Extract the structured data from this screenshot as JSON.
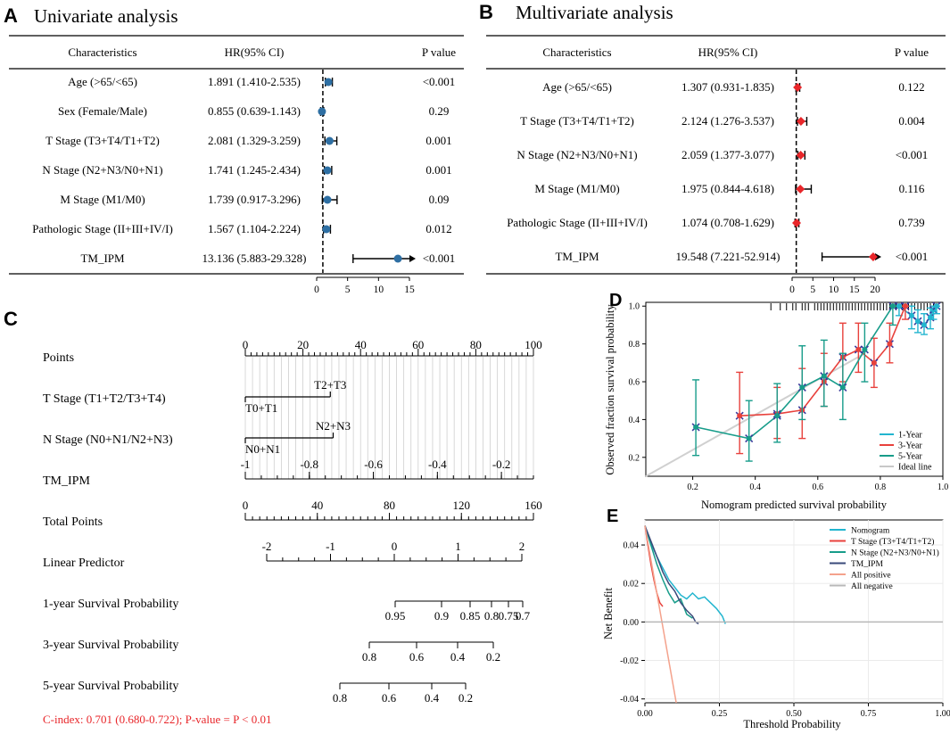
{
  "panel_labels": [
    "A",
    "B",
    "C",
    "D",
    "E"
  ],
  "chart_data": [
    {
      "panel": "A",
      "type": "forest",
      "title": "Univariate analysis",
      "headers": {
        "characteristic": "Characteristics",
        "hr": "HR(95% CI)",
        "p": "P value"
      },
      "rows": [
        {
          "label": "Age (>65/<65)",
          "hr_text": "1.891 (1.410-2.535)",
          "p": "<0.001",
          "hr": 1.891,
          "lo": 1.41,
          "hi": 2.535
        },
        {
          "label": "Sex (Female/Male)",
          "hr_text": "0.855 (0.639-1.143)",
          "p": "0.29",
          "hr": 0.855,
          "lo": 0.639,
          "hi": 1.143
        },
        {
          "label": "T Stage (T3+T4/T1+T2)",
          "hr_text": "2.081 (1.329-3.259)",
          "p": "0.001",
          "hr": 2.081,
          "lo": 1.329,
          "hi": 3.259
        },
        {
          "label": "N Stage (N2+N3/N0+N1)",
          "hr_text": "1.741 (1.245-2.434)",
          "p": "0.001",
          "hr": 1.741,
          "lo": 1.245,
          "hi": 2.434
        },
        {
          "label": "M Stage (M1/M0)",
          "hr_text": "1.739 (0.917-3.296)",
          "p": "0.09",
          "hr": 1.739,
          "lo": 0.917,
          "hi": 3.296
        },
        {
          "label": "Pathologic Stage (II+III+IV/I)",
          "hr_text": "1.567 (1.104-2.224)",
          "p": "0.012",
          "hr": 1.567,
          "lo": 1.104,
          "hi": 2.224
        },
        {
          "label": "TM_IPM",
          "hr_text": "13.136 (5.883-29.328)",
          "p": "<0.001",
          "hr": 13.136,
          "lo": 5.883,
          "hi": 29.328
        }
      ],
      "xticks": [
        0,
        5,
        10,
        15
      ],
      "xlim": [
        0,
        15
      ],
      "reference_line": 1,
      "marker_color": "#2e6fa3"
    },
    {
      "panel": "B",
      "type": "forest",
      "title": "Multivariate analysis",
      "headers": {
        "characteristic": "Characteristics",
        "hr": "HR(95% CI)",
        "p": "P value"
      },
      "rows": [
        {
          "label": "Age (>65/<65)",
          "hr_text": "1.307 (0.931-1.835)",
          "p": "0.122",
          "hr": 1.307,
          "lo": 0.931,
          "hi": 1.835
        },
        {
          "label": "T Stage (T3+T4/T1+T2)",
          "hr_text": "2.124 (1.276-3.537)",
          "p": "0.004",
          "hr": 2.124,
          "lo": 1.276,
          "hi": 3.537
        },
        {
          "label": "N Stage (N2+N3/N0+N1)",
          "hr_text": "2.059 (1.377-3.077)",
          "p": "<0.001",
          "hr": 2.059,
          "lo": 1.377,
          "hi": 3.077
        },
        {
          "label": "M Stage (M1/M0)",
          "hr_text": "1.975 (0.844-4.618)",
          "p": "0.116",
          "hr": 1.975,
          "lo": 0.844,
          "hi": 4.618
        },
        {
          "label": "Pathologic Stage (II+III+IV/I)",
          "hr_text": "1.074 (0.708-1.629)",
          "p": "0.739",
          "hr": 1.074,
          "lo": 0.708,
          "hi": 1.629
        },
        {
          "label": "TM_IPM",
          "hr_text": "19.548 (7.221-52.914)",
          "p": "<0.001",
          "hr": 19.548,
          "lo": 7.221,
          "hi": 52.914
        }
      ],
      "xticks": [
        0,
        5,
        10,
        15,
        20
      ],
      "xlim": [
        0,
        20
      ],
      "reference_line": 1,
      "marker_color": "#e8262a"
    },
    {
      "panel": "C",
      "type": "nomogram",
      "axes": [
        {
          "label": "Points",
          "ticks": [
            "0",
            "20",
            "40",
            "60",
            "80",
            "100"
          ],
          "major": [
            0,
            20,
            40,
            60,
            80,
            100
          ],
          "range": [
            0,
            100
          ]
        },
        {
          "label": "T Stage (T1+T2/T3+T4)",
          "levels": [
            {
              "name": "T0+T1",
              "points": 0
            },
            {
              "name": "T2+T3",
              "points": 29.5
            }
          ]
        },
        {
          "label": "N Stage (N0+N1/N2+N3)",
          "levels": [
            {
              "name": "N0+N1",
              "points": 0
            },
            {
              "name": "N2+N3",
              "points": 30.5
            }
          ]
        },
        {
          "label": "TM_IPM",
          "ticks": [
            "-1",
            "-0.8",
            "-0.6",
            "-0.4",
            "-0.2"
          ],
          "values": [
            -1,
            -0.8,
            -0.6,
            -0.4,
            -0.2
          ],
          "range": [
            -1,
            -0.1
          ]
        },
        {
          "label": "Total Points",
          "ticks": [
            "0",
            "40",
            "80",
            "120",
            "160"
          ],
          "values": [
            0,
            40,
            80,
            120,
            160
          ],
          "range": [
            0,
            160
          ]
        },
        {
          "label": "Linear Predictor",
          "ticks": [
            "-2",
            "-1",
            "0",
            "1",
            "2"
          ],
          "values": [
            -2,
            -1,
            0,
            1,
            2
          ],
          "range": [
            -2,
            2
          ]
        },
        {
          "label": "1-year Survival Probability",
          "ticks": [
            "0.95",
            "0.9",
            "0.85",
            "0.8",
            "0.75",
            "0.7"
          ],
          "values": [
            0.95,
            0.9,
            0.85,
            0.8,
            0.75,
            0.7
          ]
        },
        {
          "label": "3-year Survival Probability",
          "ticks": [
            "0.8",
            "0.6",
            "0.4",
            "0.2"
          ],
          "values": [
            0.8,
            0.6,
            0.4,
            0.2
          ]
        },
        {
          "label": "5-year Survival Probability",
          "ticks": [
            "0.8",
            "0.6",
            "0.4",
            "0.2"
          ],
          "values": [
            0.8,
            0.6,
            0.4,
            0.2
          ]
        }
      ],
      "c_index": "C-index: 0.701 (0.680-0.722); P-value = P < 0.01",
      "c_index_color": "#e8262a"
    },
    {
      "panel": "D",
      "type": "calibration",
      "xlabel": "Nomogram predicted survival probability",
      "ylabel": "Observed fraction survival probability",
      "xlim": [
        0.05,
        1.0
      ],
      "ylim": [
        0.1,
        1.02
      ],
      "xticks": [
        0.2,
        0.4,
        0.6,
        0.8,
        1.0
      ],
      "xtick_labels": [
        "0.2",
        "0.4",
        "0.6",
        "0.8",
        "1.0"
      ],
      "yticks": [
        0.2,
        0.4,
        0.6,
        0.8,
        1.0
      ],
      "ytick_labels": [
        "0.2",
        "0.4",
        "0.6",
        "0.8",
        "1.0"
      ],
      "legend": [
        {
          "name": "1-Year",
          "color": "#22b5cf"
        },
        {
          "name": "3-Year",
          "color": "#e8413c"
        },
        {
          "name": "5-Year",
          "color": "#179c8a"
        },
        {
          "name": "Ideal line",
          "color": "#c8c8c8"
        }
      ],
      "series": [
        {
          "name": "1-Year",
          "color": "#22b5cf",
          "x": [
            0.86,
            0.9,
            0.92,
            0.94,
            0.96,
            0.97,
            0.98
          ],
          "y": [
            1.0,
            0.95,
            0.92,
            0.9,
            0.94,
            0.98,
            1.0
          ],
          "lo": [
            0.95,
            0.88,
            0.86,
            0.85,
            0.88,
            0.93,
            0.96
          ],
          "hi": [
            1.0,
            1.0,
            0.98,
            0.96,
            0.99,
            1.0,
            1.0
          ]
        },
        {
          "name": "3-Year",
          "color": "#e8413c",
          "x": [
            0.35,
            0.47,
            0.55,
            0.62,
            0.68,
            0.73,
            0.78,
            0.83,
            0.88
          ],
          "y": [
            0.42,
            0.43,
            0.45,
            0.6,
            0.73,
            0.77,
            0.7,
            0.8,
            1.0
          ],
          "lo": [
            0.22,
            0.3,
            0.3,
            0.47,
            0.6,
            0.65,
            0.57,
            0.7,
            0.93
          ],
          "hi": [
            0.65,
            0.57,
            0.67,
            0.75,
            0.91,
            0.91,
            0.83,
            0.91,
            1.0
          ]
        },
        {
          "name": "5-Year",
          "color": "#179c8a",
          "x": [
            0.21,
            0.38,
            0.47,
            0.55,
            0.62,
            0.68,
            0.75,
            0.84
          ],
          "y": [
            0.36,
            0.3,
            0.42,
            0.57,
            0.63,
            0.57,
            0.77,
            1.0
          ],
          "lo": [
            0.21,
            0.18,
            0.28,
            0.4,
            0.47,
            0.4,
            0.6,
            0.9
          ],
          "hi": [
            0.61,
            0.5,
            0.59,
            0.79,
            0.82,
            0.75,
            0.91,
            1.0
          ]
        }
      ],
      "rug": [
        0.45,
        0.48,
        0.5,
        0.52,
        0.53,
        0.55,
        0.56,
        0.57,
        0.59,
        0.6,
        0.61,
        0.62,
        0.63,
        0.64,
        0.65,
        0.66,
        0.67,
        0.68,
        0.69,
        0.7,
        0.71,
        0.72,
        0.73,
        0.74,
        0.75,
        0.76,
        0.77,
        0.78,
        0.79,
        0.8,
        0.81,
        0.82,
        0.83,
        0.84,
        0.85,
        0.86,
        0.87,
        0.88,
        0.89,
        0.9,
        0.91,
        0.92,
        0.93,
        0.94,
        0.95,
        0.96,
        0.97,
        0.98
      ]
    },
    {
      "panel": "E",
      "type": "line",
      "chart": "decision curve",
      "xlabel": "Threshold Probability",
      "ylabel": "Net Benefit",
      "xlim": [
        0,
        1
      ],
      "ylim": [
        -0.042,
        0.053
      ],
      "xticks": [
        0,
        0.25,
        0.5,
        0.75,
        1.0
      ],
      "xtick_labels": [
        "0.00",
        "0.25",
        "0.50",
        "0.75",
        "1.00"
      ],
      "yticks": [
        -0.04,
        -0.02,
        0,
        0.02,
        0.04
      ],
      "ytick_labels": [
        "-0.04",
        "-0.02",
        "0.00",
        "0.02",
        "0.04"
      ],
      "legend": [
        {
          "name": "Nomogram",
          "color": "#22b5cf"
        },
        {
          "name": "T Stage (T3+T4/T1+T2)",
          "color": "#e8413c"
        },
        {
          "name": "N Stage (N2+N3/N0+N1)",
          "color": "#179c8a"
        },
        {
          "name": "TM_IPM",
          "color": "#3a4a7a"
        },
        {
          "name": "All positive",
          "color": "#f4a28c"
        },
        {
          "name": "All negative",
          "color": "#b8b8b8"
        }
      ],
      "series": [
        {
          "name": "Nomogram",
          "color": "#22b5cf",
          "x": [
            0.0,
            0.02,
            0.04,
            0.06,
            0.08,
            0.1,
            0.12,
            0.14,
            0.16,
            0.18,
            0.2,
            0.22,
            0.24,
            0.26,
            0.27
          ],
          "y": [
            0.05,
            0.041,
            0.034,
            0.028,
            0.022,
            0.018,
            0.014,
            0.012,
            0.015,
            0.012,
            0.013,
            0.01,
            0.007,
            0.003,
            -0.001
          ]
        },
        {
          "name": "T Stage (T3+T4/T1+T2)",
          "color": "#e8413c",
          "x": [
            0.0,
            0.01,
            0.02,
            0.03,
            0.04,
            0.05,
            0.06
          ],
          "y": [
            0.05,
            0.04,
            0.03,
            0.022,
            0.015,
            0.01,
            0.008
          ]
        },
        {
          "name": "N Stage (N2+N3/N0+N1)",
          "color": "#179c8a",
          "x": [
            0.0,
            0.02,
            0.04,
            0.06,
            0.08,
            0.1,
            0.12,
            0.14,
            0.16
          ],
          "y": [
            0.05,
            0.04,
            0.03,
            0.022,
            0.015,
            0.01,
            0.012,
            0.004,
            0.002
          ]
        },
        {
          "name": "TM_IPM",
          "color": "#3a4a7a",
          "x": [
            0.0,
            0.02,
            0.04,
            0.06,
            0.08,
            0.1,
            0.12,
            0.14,
            0.16,
            0.17,
            0.18
          ],
          "y": [
            0.05,
            0.042,
            0.034,
            0.026,
            0.02,
            0.016,
            0.01,
            0.006,
            0.003,
            0.0,
            -0.001
          ]
        },
        {
          "name": "All positive",
          "color": "#f4a28c",
          "x": [
            0.0,
            0.105
          ],
          "y": [
            0.05,
            -0.042
          ]
        },
        {
          "name": "All negative",
          "color": "#b8b8b8",
          "x": [
            0.0,
            1.0
          ],
          "y": [
            0.0,
            0.0
          ]
        }
      ]
    }
  ]
}
